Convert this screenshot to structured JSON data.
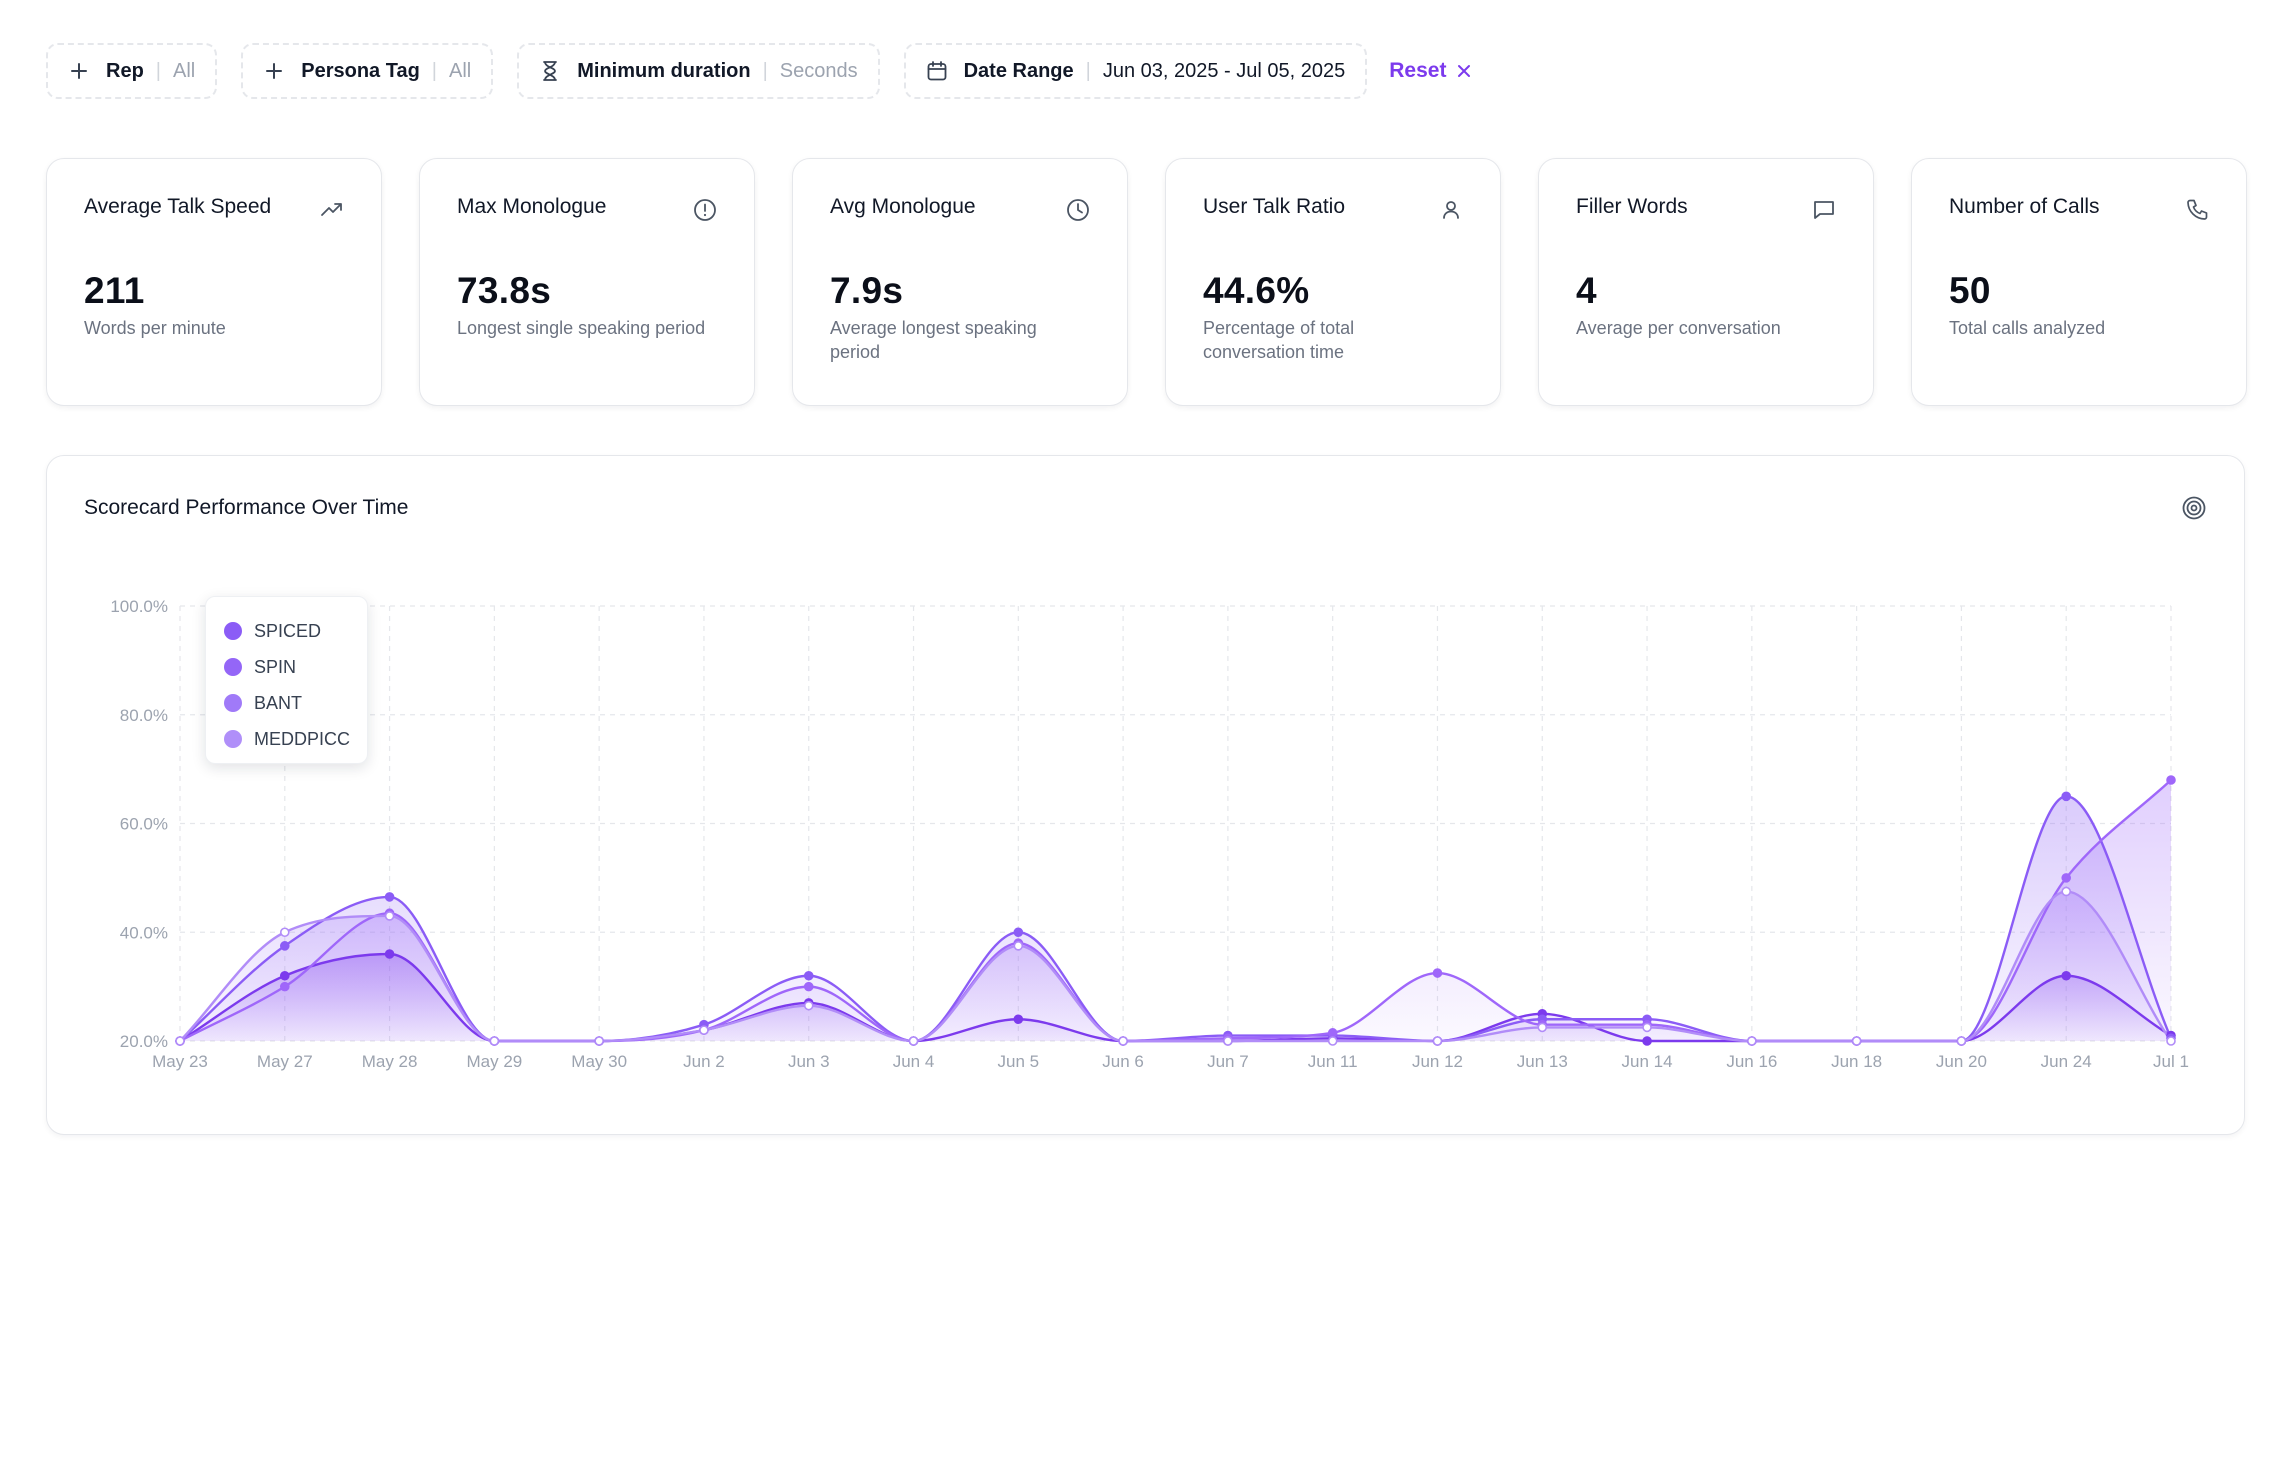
{
  "filters": {
    "rep": {
      "label": "Rep",
      "value": "All"
    },
    "persona": {
      "label": "Persona Tag",
      "value": "All"
    },
    "duration": {
      "label": "Minimum duration",
      "value": "Seconds"
    },
    "date": {
      "label": "Date Range",
      "value": "Jun 03, 2025 - Jul 05, 2025"
    },
    "reset_label": "Reset"
  },
  "kpis": [
    {
      "title": "Average Talk Speed",
      "value": "211",
      "desc": "Words per minute",
      "icon": "trending-up-icon"
    },
    {
      "title": "Max Monologue",
      "value": "73.8s",
      "desc": "Longest single speaking period",
      "icon": "alert-circle-icon"
    },
    {
      "title": "Avg Monologue",
      "value": "7.9s",
      "desc": "Average longest speaking period",
      "icon": "clock-icon"
    },
    {
      "title": "User Talk Ratio",
      "value": "44.6%",
      "desc": "Percentage of total conversation time",
      "icon": "user-icon"
    },
    {
      "title": "Filler Words",
      "value": "4",
      "desc": "Average per conversation",
      "icon": "message-square-icon"
    },
    {
      "title": "Number of Calls",
      "value": "50",
      "desc": "Total calls analyzed",
      "icon": "phone-icon"
    }
  ],
  "chart": {
    "title": "Scorecard Performance Over Time",
    "icon": "target-icon"
  },
  "chart_data": {
    "type": "area",
    "title": "Scorecard Performance Over Time",
    "x": [
      "May 23",
      "May 27",
      "May 28",
      "May 29",
      "May 30",
      "Jun 2",
      "Jun 3",
      "Jun 4",
      "Jun 5",
      "Jun 6",
      "Jun 7",
      "Jun 11",
      "Jun 12",
      "Jun 13",
      "Jun 14",
      "Jun 16",
      "Jun 18",
      "Jun 20",
      "Jun 24",
      "Jul 1"
    ],
    "ylim": [
      20,
      100
    ],
    "yticks": [
      "20.0%",
      "40.0%",
      "60.0%",
      "80.0%",
      "100.0%"
    ],
    "grid": true,
    "legend_position": "top-left",
    "series": [
      {
        "name": "SPICED",
        "color": "#7c3aed",
        "values": [
          20,
          32,
          36,
          20,
          20,
          22,
          27,
          20,
          24,
          20,
          20,
          20.5,
          20,
          25,
          20,
          20,
          20,
          20,
          32,
          21
        ]
      },
      {
        "name": "SPIN",
        "color": "#8b5cf6",
        "values": [
          20,
          37.5,
          46.5,
          20,
          20,
          23,
          32,
          20,
          40,
          20,
          21,
          21,
          20,
          24,
          24,
          20,
          20,
          20,
          65,
          20.5
        ]
      },
      {
        "name": "BANT",
        "color": "#9f67fa",
        "values": [
          20,
          30,
          43.5,
          20,
          20,
          22,
          30,
          20,
          38,
          20,
          20.5,
          21.5,
          32.5,
          23,
          23,
          20,
          20,
          20,
          50,
          68
        ]
      },
      {
        "name": "MEDDPICC",
        "color": "#b18cf8",
        "values": [
          20,
          40,
          43,
          20,
          20,
          22,
          26.5,
          20,
          37.5,
          20,
          20,
          20,
          20,
          22.5,
          22.5,
          20,
          20,
          20,
          47.5,
          20
        ]
      }
    ]
  }
}
